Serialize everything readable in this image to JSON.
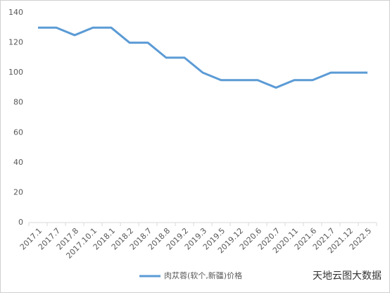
{
  "chart_data": {
    "type": "line",
    "categories": [
      "2017.1",
      "2017.7",
      "2017.8",
      "2017.10.1",
      "2018.1",
      "2018.2",
      "2018.7",
      "2018.8",
      "2019.2",
      "2019.3",
      "2019.5",
      "2019.12",
      "2020.6",
      "2020.7",
      "2020.11",
      "2021.6",
      "2021.7",
      "2021.12",
      "2022.5"
    ],
    "series": [
      {
        "name": "肉苁蓉(软个,新疆)价格",
        "color": "#5b9bd5",
        "values": [
          130,
          130,
          125,
          130,
          130,
          120,
          120,
          110,
          110,
          100,
          95,
          95,
          95,
          90,
          95,
          95,
          100,
          100,
          100
        ]
      }
    ],
    "ylim": [
      0,
      140
    ],
    "yticks": [
      0,
      20,
      40,
      60,
      80,
      100,
      120,
      140
    ],
    "grid": false,
    "legend": "bottom",
    "watermark": "天地云图大数据"
  }
}
